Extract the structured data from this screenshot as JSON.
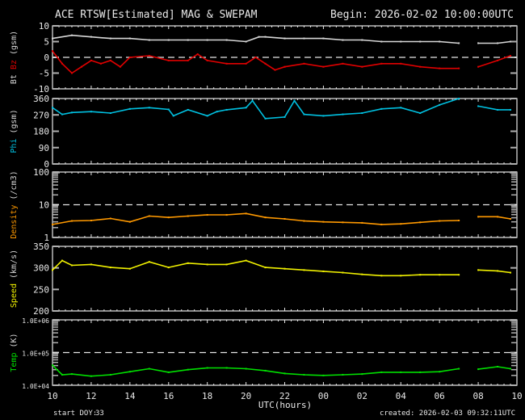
{
  "title": "ACE RTSW[Estimated] MAG & SWEPAM",
  "begin": "Begin: 2026-02-02 10:00:00UTC",
  "start_doy_label": "start DOY:",
  "start_doy": "33",
  "created": "created: 2026-02-03 09:32:11UTC",
  "chart_data": {
    "type": "scatter",
    "xlabel": "UTC(hours)",
    "xticks": [
      "10",
      "12",
      "14",
      "16",
      "18",
      "20",
      "22",
      "00",
      "02",
      "04",
      "06",
      "08",
      "10"
    ],
    "xrange": [
      "2026-02-02 10:00",
      "2026-02-03 10:00"
    ],
    "grid": false,
    "panels": [
      {
        "id": "mag",
        "ylabel_parts": [
          {
            "text": "Bt",
            "color": "#d8d8d8"
          },
          {
            "text": " Bz",
            "color": "#e00000"
          },
          {
            "text": " (gsm)",
            "color": "#d8d8d8"
          }
        ],
        "scale": "linear",
        "ylim": [
          -10,
          10
        ],
        "yticks": [
          {
            "v": 10,
            "label": "10"
          },
          {
            "v": 5,
            "label": "5"
          },
          {
            "v": 0,
            "label": "0"
          },
          {
            "v": -5,
            "label": "-5"
          },
          {
            "v": -10,
            "label": "-10"
          }
        ],
        "dashed_at": 0,
        "series": [
          {
            "name": "Bt",
            "color": "#d8d8d8",
            "points": [
              [
                "10:00",
                6
              ],
              [
                "11:00",
                7
              ],
              [
                "12:00",
                6.5
              ],
              [
                "13:00",
                6
              ],
              [
                "14:00",
                6
              ],
              [
                "15:00",
                5.5
              ],
              [
                "16:00",
                5.5
              ],
              [
                "17:00",
                5.5
              ],
              [
                "18:00",
                5.5
              ],
              [
                "19:00",
                5.5
              ],
              [
                "20:00",
                5
              ],
              [
                "20:40",
                6.5
              ],
              [
                "21:00",
                6.5
              ],
              [
                "22:00",
                6
              ],
              [
                "23:00",
                6
              ],
              [
                "00:00",
                6
              ],
              [
                "01:00",
                5.5
              ],
              [
                "02:00",
                5.5
              ],
              [
                "03:00",
                5
              ],
              [
                "04:00",
                5
              ],
              [
                "05:00",
                5
              ],
              [
                "06:00",
                5
              ],
              [
                "07:00",
                4.5
              ],
              [
                "07:30",
                null
              ],
              [
                "08:00",
                4.5
              ],
              [
                "09:00",
                4.5
              ],
              [
                "09:40",
                5
              ]
            ]
          },
          {
            "name": "Bz",
            "color": "#e00000",
            "points": [
              [
                "10:00",
                2
              ],
              [
                "10:30",
                -2
              ],
              [
                "11:00",
                -5
              ],
              [
                "11:30",
                -3
              ],
              [
                "12:00",
                -1
              ],
              [
                "12:30",
                -2
              ],
              [
                "13:00",
                -1
              ],
              [
                "13:30",
                -3
              ],
              [
                "14:00",
                0
              ],
              [
                "15:00",
                0.5
              ],
              [
                "16:00",
                -1
              ],
              [
                "17:00",
                -1
              ],
              [
                "17:30",
                1
              ],
              [
                "18:00",
                -1
              ],
              [
                "19:00",
                -2
              ],
              [
                "20:00",
                -2
              ],
              [
                "20:30",
                0
              ],
              [
                "21:00",
                -2
              ],
              [
                "21:30",
                -4
              ],
              [
                "22:00",
                -3
              ],
              [
                "23:00",
                -2
              ],
              [
                "00:00",
                -3
              ],
              [
                "01:00",
                -2
              ],
              [
                "02:00",
                -3
              ],
              [
                "03:00",
                -2
              ],
              [
                "04:00",
                -2
              ],
              [
                "05:00",
                -3
              ],
              [
                "06:00",
                -3.5
              ],
              [
                "07:00",
                -3.5
              ],
              [
                "07:30",
                null
              ],
              [
                "08:00",
                -3
              ],
              [
                "09:00",
                -1
              ],
              [
                "09:40",
                0.5
              ]
            ]
          }
        ]
      },
      {
        "id": "phi",
        "ylabel_parts": [
          {
            "text": "Phi",
            "color": "#00c0e0"
          },
          {
            "text": " (gsm)",
            "color": "#d8d8d8"
          }
        ],
        "scale": "linear",
        "ylim": [
          0,
          360
        ],
        "yticks": [
          {
            "v": 360,
            "label": "360"
          },
          {
            "v": 270,
            "label": "270"
          },
          {
            "v": 180,
            "label": "180"
          },
          {
            "v": 90,
            "label": "90"
          },
          {
            "v": 0,
            "label": "0"
          }
        ],
        "series": [
          {
            "name": "Phi",
            "color": "#00c0e0",
            "points": [
              [
                "10:00",
                310
              ],
              [
                "10:30",
                273
              ],
              [
                "11:00",
                283
              ],
              [
                "12:00",
                288
              ],
              [
                "13:00",
                280
              ],
              [
                "14:00",
                303
              ],
              [
                "15:00",
                310
              ],
              [
                "16:00",
                300
              ],
              [
                "16:15",
                265
              ],
              [
                "17:00",
                298
              ],
              [
                "18:00",
                265
              ],
              [
                "18:30",
                288
              ],
              [
                "19:00",
                298
              ],
              [
                "20:00",
                310
              ],
              [
                "20:20",
                348
              ],
              [
                "21:00",
                250
              ],
              [
                "22:00",
                258
              ],
              [
                "22:30",
                348
              ],
              [
                "23:00",
                273
              ],
              [
                "00:00",
                265
              ],
              [
                "01:00",
                273
              ],
              [
                "02:00",
                280
              ],
              [
                "03:00",
                303
              ],
              [
                "04:00",
                310
              ],
              [
                "05:00",
                280
              ],
              [
                "06:00",
                325
              ],
              [
                "07:00",
                360
              ],
              [
                "07:30",
                null
              ],
              [
                "08:00",
                318
              ],
              [
                "09:00",
                298
              ],
              [
                "09:40",
                298
              ]
            ]
          }
        ]
      },
      {
        "id": "density",
        "ylabel_parts": [
          {
            "text": "Density",
            "color": "#ff9900"
          },
          {
            "text": " (/cm3)",
            "color": "#d8d8d8"
          }
        ],
        "scale": "log",
        "ylim": [
          1,
          100
        ],
        "yticks": [
          {
            "v": 100,
            "label": "100"
          },
          {
            "v": 10,
            "label": "10"
          },
          {
            "v": 1,
            "label": "1"
          }
        ],
        "dashed_at": 10,
        "series": [
          {
            "name": "Density",
            "color": "#ff9900",
            "points": [
              [
                "10:00",
                2.5
              ],
              [
                "11:00",
                3.2
              ],
              [
                "12:00",
                3.3
              ],
              [
                "13:00",
                3.8
              ],
              [
                "14:00",
                3.0
              ],
              [
                "15:00",
                4.5
              ],
              [
                "16:00",
                4.1
              ],
              [
                "17:00",
                4.5
              ],
              [
                "18:00",
                4.9
              ],
              [
                "19:00",
                4.9
              ],
              [
                "20:00",
                5.4
              ],
              [
                "21:00",
                4.1
              ],
              [
                "22:00",
                3.7
              ],
              [
                "23:00",
                3.2
              ],
              [
                "00:00",
                3.0
              ],
              [
                "01:00",
                2.9
              ],
              [
                "02:00",
                2.8
              ],
              [
                "03:00",
                2.5
              ],
              [
                "04:00",
                2.6
              ],
              [
                "05:00",
                2.9
              ],
              [
                "06:00",
                3.2
              ],
              [
                "07:00",
                3.3
              ],
              [
                "07:30",
                null
              ],
              [
                "08:00",
                4.3
              ],
              [
                "09:00",
                4.3
              ],
              [
                "09:40",
                3.7
              ]
            ]
          }
        ]
      },
      {
        "id": "speed",
        "ylabel_parts": [
          {
            "text": "Speed",
            "color": "#f0f000"
          },
          {
            "text": " (km/s)",
            "color": "#d8d8d8"
          }
        ],
        "scale": "linear",
        "ylim": [
          200,
          350
        ],
        "yticks": [
          {
            "v": 350,
            "label": "350"
          },
          {
            "v": 300,
            "label": "300"
          },
          {
            "v": 250,
            "label": "250"
          },
          {
            "v": 200,
            "label": "200"
          }
        ],
        "series": [
          {
            "name": "Speed",
            "color": "#f0f000",
            "points": [
              [
                "10:00",
                295
              ],
              [
                "10:30",
                317
              ],
              [
                "11:00",
                306
              ],
              [
                "12:00",
                308
              ],
              [
                "13:00",
                301
              ],
              [
                "14:00",
                298
              ],
              [
                "15:00",
                314
              ],
              [
                "16:00",
                301
              ],
              [
                "17:00",
                311
              ],
              [
                "18:00",
                308
              ],
              [
                "19:00",
                308
              ],
              [
                "20:00",
                317
              ],
              [
                "21:00",
                301
              ],
              [
                "22:00",
                298
              ],
              [
                "23:00",
                295
              ],
              [
                "00:00",
                292
              ],
              [
                "01:00",
                289
              ],
              [
                "02:00",
                285
              ],
              [
                "03:00",
                282
              ],
              [
                "04:00",
                282
              ],
              [
                "05:00",
                284
              ],
              [
                "06:00",
                284
              ],
              [
                "07:00",
                284
              ],
              [
                "07:30",
                null
              ],
              [
                "08:00",
                295
              ],
              [
                "09:00",
                293
              ],
              [
                "09:40",
                289
              ]
            ]
          }
        ]
      },
      {
        "id": "temp",
        "ylabel_parts": [
          {
            "text": "Temp",
            "color": "#00e000"
          },
          {
            "text": " (K)",
            "color": "#d8d8d8"
          }
        ],
        "scale": "log",
        "ylim": [
          10000,
          1000000
        ],
        "yticks": [
          {
            "v": 1000000,
            "label": "1.0E+06"
          },
          {
            "v": 100000,
            "label": "1.0E+05"
          },
          {
            "v": 10000,
            "label": "1.0E+04"
          }
        ],
        "dashed_at": 100000,
        "series": [
          {
            "name": "Temp",
            "color": "#00e000",
            "points": [
              [
                "10:00",
                41000
              ],
              [
                "10:30",
                21000
              ],
              [
                "11:00",
                22000
              ],
              [
                "12:00",
                19000
              ],
              [
                "13:00",
                21000
              ],
              [
                "14:00",
                26000
              ],
              [
                "15:00",
                32000
              ],
              [
                "16:00",
                25000
              ],
              [
                "17:00",
                30000
              ],
              [
                "18:00",
                34000
              ],
              [
                "19:00",
                34000
              ],
              [
                "20:00",
                32000
              ],
              [
                "21:00",
                28000
              ],
              [
                "22:00",
                23000
              ],
              [
                "23:00",
                21000
              ],
              [
                "00:00",
                20000
              ],
              [
                "01:00",
                21000
              ],
              [
                "02:00",
                22000
              ],
              [
                "03:00",
                25000
              ],
              [
                "04:00",
                25000
              ],
              [
                "05:00",
                25000
              ],
              [
                "06:00",
                26000
              ],
              [
                "07:00",
                32000
              ],
              [
                "07:30",
                null
              ],
              [
                "08:00",
                31000
              ],
              [
                "09:00",
                37000
              ],
              [
                "09:40",
                32000
              ]
            ]
          }
        ]
      }
    ]
  }
}
